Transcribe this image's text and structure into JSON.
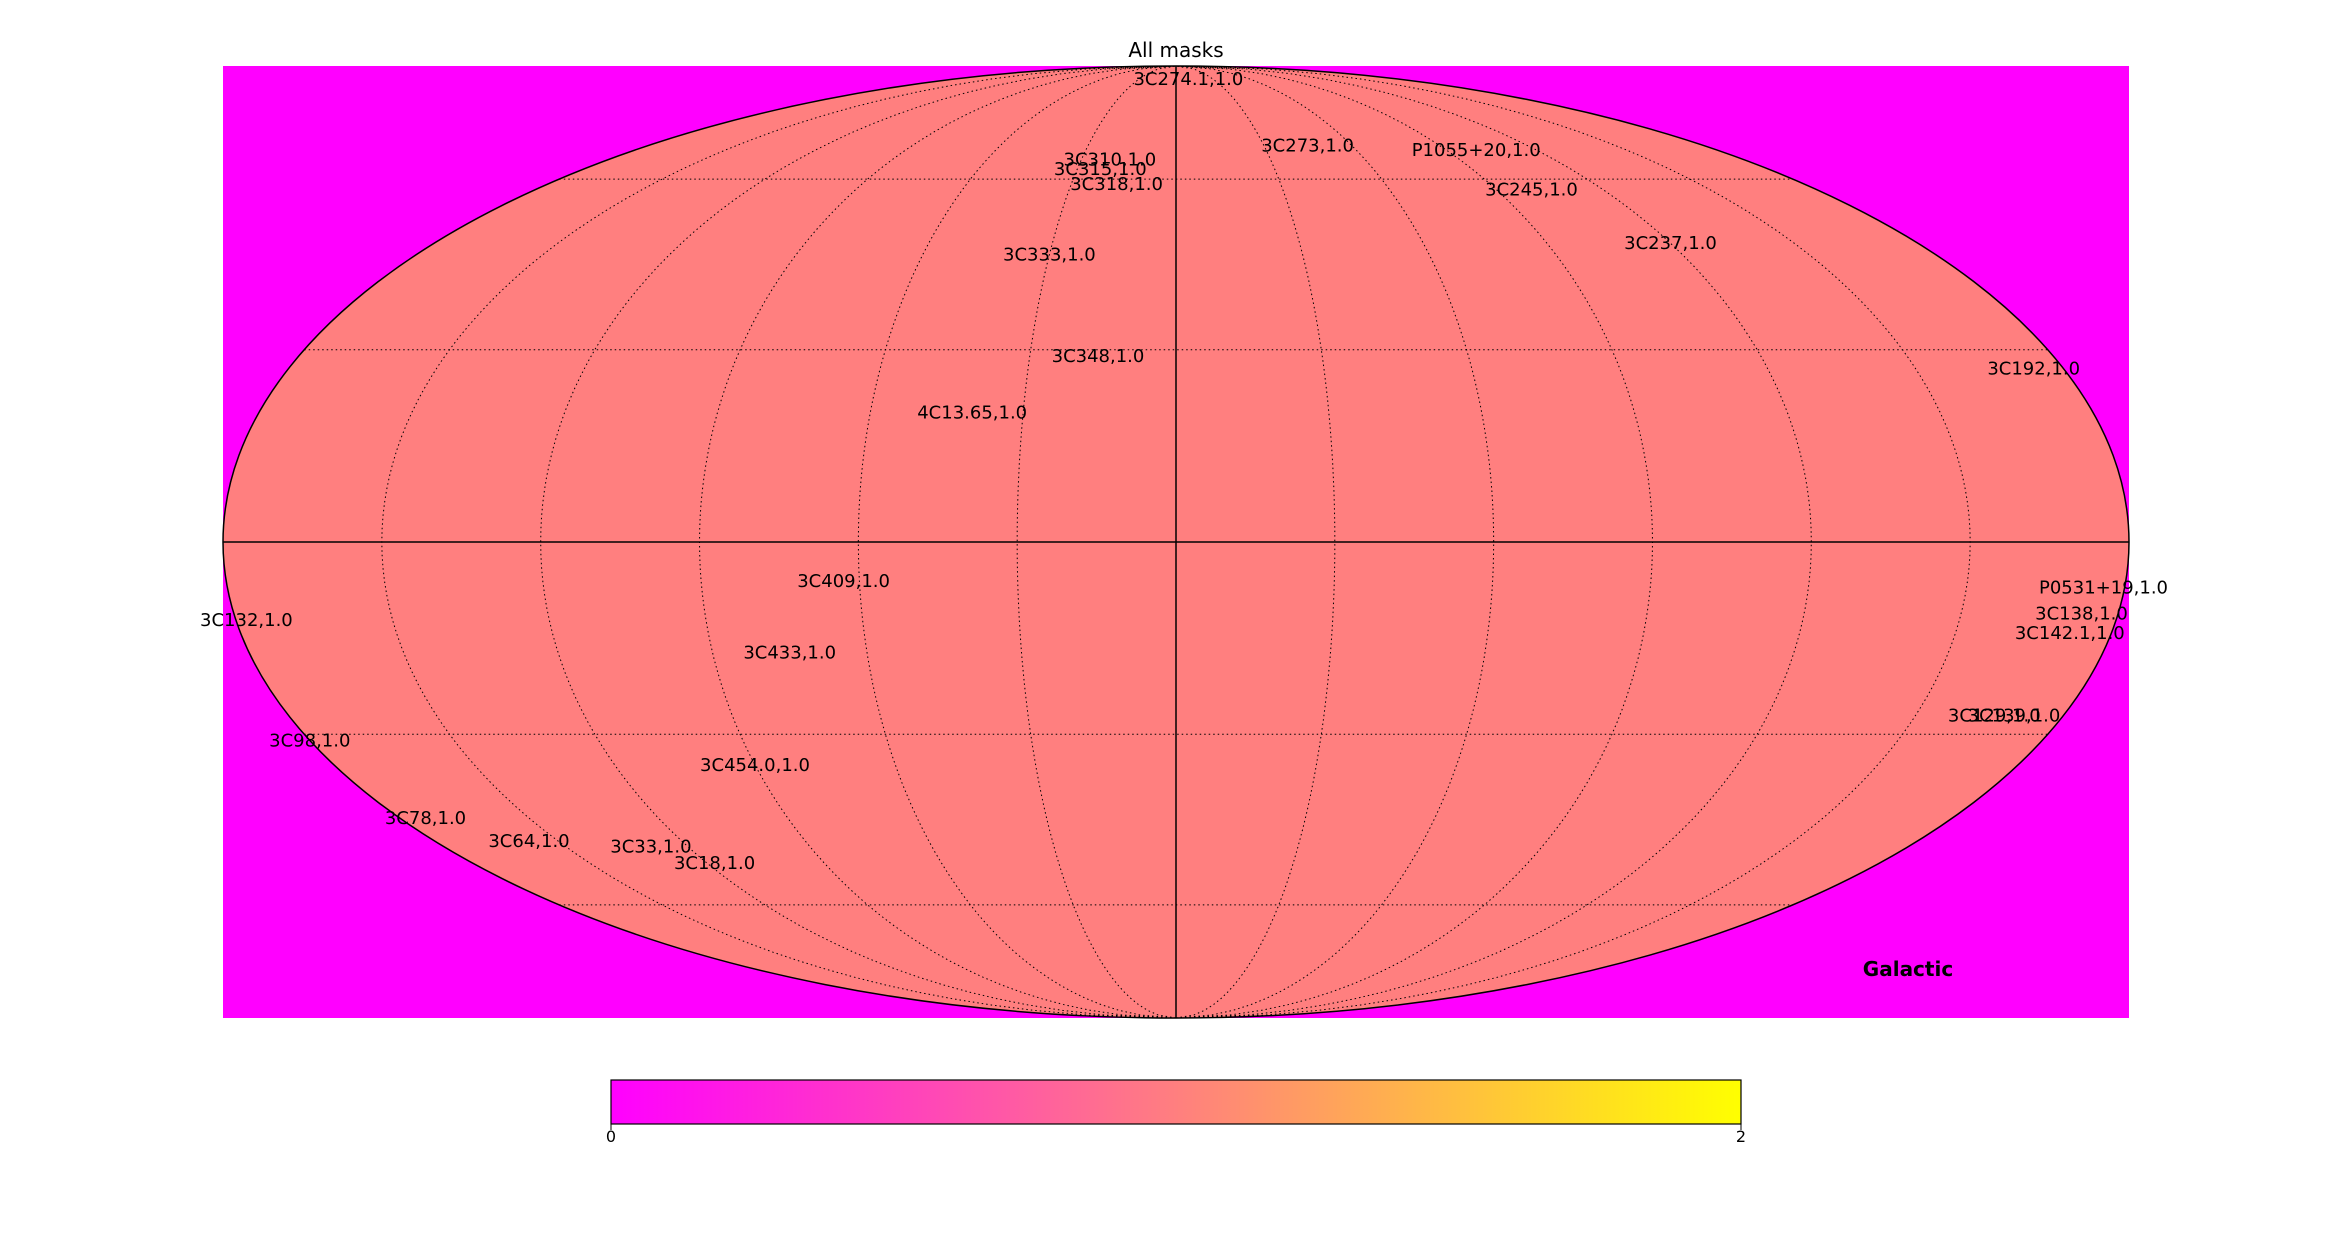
{
  "chart_data": {
    "type": "heatmap",
    "projection": "mollweide",
    "title": "All masks",
    "coord_label": "Galactic",
    "colors": {
      "background_fill": "#ff00ff",
      "sky_fill": "#ff7f7f",
      "colormap": [
        "#ff00ff",
        "#ff66a0",
        "#ff8a66",
        "#ffcc33",
        "#ffff00"
      ]
    },
    "colorbar": {
      "min_label": "0",
      "max_label": "2",
      "min": 0,
      "max": 2
    },
    "sky_value": 1.0,
    "graticule": {
      "lon_step_deg": 30,
      "lat_step_deg": 30
    },
    "sources": [
      {
        "label": "3C274.1,1.0",
        "lon": -10,
        "lat": 84
      },
      {
        "label": "3C273,1.0",
        "lon": -45,
        "lat": 67
      },
      {
        "label": "P1055+20,1.0",
        "lon": -100,
        "lat": 66
      },
      {
        "label": "3C245,1.0",
        "lon": -100,
        "lat": 58
      },
      {
        "label": "3C237,1.0",
        "lon": -120,
        "lat": 48
      },
      {
        "label": "3C192,1.0",
        "lon": -174,
        "lat": 27
      },
      {
        "label": "3C310,1.0",
        "lon": 21,
        "lat": 64
      },
      {
        "label": "3C315,1.0",
        "lon": 23,
        "lat": 62
      },
      {
        "label": "3C318,1.0",
        "lon": 17,
        "lat": 59
      },
      {
        "label": "3C333,1.0",
        "lon": 30,
        "lat": 46
      },
      {
        "label": "3C348,1.0",
        "lon": 16,
        "lat": 29
      },
      {
        "label": "4C13.65,1.0",
        "lon": 40,
        "lat": 20
      },
      {
        "label": "3C409,1.0",
        "lon": 63,
        "lat": -6
      },
      {
        "label": "3C433,1.0",
        "lon": 75,
        "lat": -17
      },
      {
        "label": "3C454.0,1.0",
        "lon": 90,
        "lat": -35
      },
      {
        "label": "3C132,1.0",
        "lon": 178,
        "lat": -12
      },
      {
        "label": "3C98,1.0",
        "lon": 180,
        "lat": -31
      },
      {
        "label": "3C78,1.0",
        "lon": 174,
        "lat": -44
      },
      {
        "label": "3C64,1.0",
        "lon": 157,
        "lat": -48
      },
      {
        "label": "3C33,1.0",
        "lon": 129,
        "lat": -49
      },
      {
        "label": "3C18,1.0",
        "lon": 118,
        "lat": -52
      },
      {
        "label": "P0531+19,1.0",
        "lon": -176,
        "lat": -7
      },
      {
        "label": "3C138,1.0",
        "lon": -173,
        "lat": -11
      },
      {
        "label": "3C142.1,1.0",
        "lon": -172,
        "lat": -14
      },
      {
        "label": "3C129,1.0",
        "lon": -166,
        "lat": -27
      },
      {
        "label": "3C139,1.0",
        "lon": -170,
        "lat": -27
      }
    ]
  }
}
